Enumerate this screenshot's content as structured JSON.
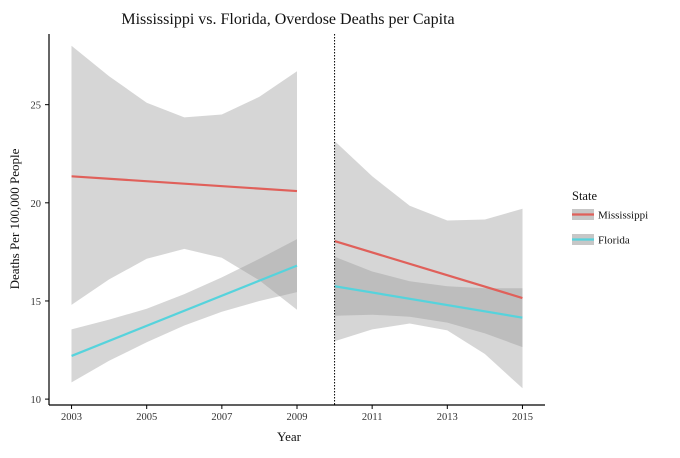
{
  "chart_data": {
    "type": "line",
    "title": "Mississippi vs. Florida, Overdose Deaths per Capita",
    "xlabel": "Year",
    "ylabel": "Deaths Per 100,000 People",
    "xlim": [
      2002.4,
      2015.6
    ],
    "ylim": [
      9.7,
      28.6
    ],
    "x_ticks": [
      2003,
      2005,
      2007,
      2009,
      2011,
      2013,
      2015
    ],
    "y_ticks": [
      10,
      15,
      20,
      25
    ],
    "intervention_line_x": 2010,
    "legend": {
      "title": "State",
      "placement": "right",
      "entries": [
        "Mississippi",
        "Florida"
      ]
    },
    "series": [
      {
        "name": "Mississippi",
        "color": "#e0605a",
        "segments": [
          {
            "x": [
              2003,
              2009
            ],
            "fit": [
              21.35,
              20.6
            ],
            "band_x": [
              2003,
              2004,
              2005,
              2006,
              2007,
              2008,
              2009
            ],
            "band_upper": [
              28.0,
              26.45,
              25.1,
              24.35,
              24.5,
              25.4,
              26.7
            ],
            "band_lower": [
              14.8,
              16.1,
              17.15,
              17.65,
              17.2,
              16.05,
              14.55
            ]
          },
          {
            "x": [
              2010,
              2015
            ],
            "fit": [
              18.05,
              15.15
            ],
            "band_x": [
              2010,
              2011,
              2012,
              2013,
              2014,
              2015
            ],
            "band_upper": [
              23.15,
              21.35,
              19.85,
              19.1,
              19.15,
              19.7
            ],
            "band_lower": [
              12.95,
              13.55,
              13.85,
              13.5,
              12.3,
              10.55
            ]
          }
        ]
      },
      {
        "name": "Florida",
        "color": "#56d3dc",
        "segments": [
          {
            "x": [
              2003,
              2009
            ],
            "fit": [
              12.2,
              16.8
            ],
            "band_x": [
              2003,
              2004,
              2005,
              2006,
              2007,
              2008,
              2009
            ],
            "band_upper": [
              13.55,
              14.05,
              14.6,
              15.35,
              16.2,
              17.15,
              18.15
            ],
            "band_lower": [
              10.85,
              11.95,
              12.9,
              13.75,
              14.45,
              15.0,
              15.45
            ]
          },
          {
            "x": [
              2010,
              2015
            ],
            "fit": [
              15.75,
              14.15
            ],
            "band_x": [
              2010,
              2011,
              2012,
              2013,
              2014,
              2015
            ],
            "band_upper": [
              17.25,
              16.5,
              16.0,
              15.75,
              15.65,
              15.65
            ],
            "band_lower": [
              14.25,
              14.3,
              14.2,
              13.9,
              13.35,
              12.65
            ]
          }
        ]
      }
    ]
  }
}
